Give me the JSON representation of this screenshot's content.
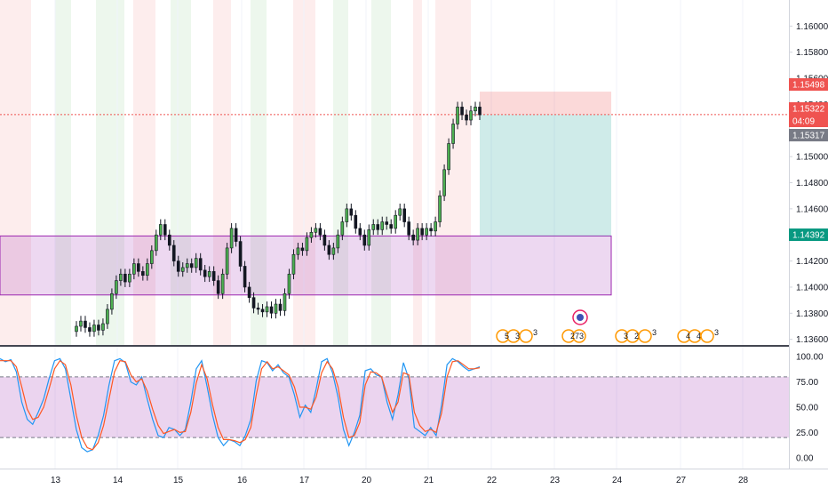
{
  "chart_data": [
    {
      "type": "candlestick",
      "title": "",
      "x_ticks": [
        "13",
        "14",
        "15",
        "16",
        "17",
        "20",
        "21",
        "22",
        "23",
        "24",
        "27",
        "28"
      ],
      "y_ticks": [
        "1.16000",
        "1.15800",
        "1.15600",
        "1.15400",
        "1.15000",
        "1.14800",
        "1.14600",
        "1.14200",
        "1.14000",
        "1.13800",
        "1.13600"
      ],
      "ylim": [
        1.1355,
        1.162
      ],
      "price_tags": [
        {
          "label": "1.15498",
          "value": 1.15498,
          "color": "#ef5350"
        },
        {
          "label": "1.15322",
          "value": 1.15322,
          "color": "#ef5350"
        },
        {
          "label": "04:09",
          "value": 1.1528,
          "color": "#ef5350"
        },
        {
          "label": "1.15317",
          "value": 1.15317,
          "color": "#787b86"
        },
        {
          "label": "1.14392",
          "value": 1.14392,
          "color": "#089981"
        }
      ],
      "current_price": 1.15322,
      "zone": {
        "top": 1.14392,
        "bottom": 1.1394,
        "color": "#9c27b0"
      },
      "position": {
        "entry": 1.15322,
        "stop": 1.15498,
        "target": 1.14392,
        "side": "short"
      },
      "background_band_colors": [
        "#ef5350",
        "#4caf50"
      ],
      "series": [
        {
          "values": [
            1.137,
            1.1374,
            1.1369,
            1.1366,
            1.1371,
            1.1367,
            1.1372,
            1.1383,
            1.1395,
            1.1405,
            1.141,
            1.1404,
            1.141,
            1.1418,
            1.1412,
            1.1409,
            1.1418,
            1.1428,
            1.144,
            1.1448,
            1.144,
            1.1432,
            1.142,
            1.1412,
            1.1415,
            1.1418,
            1.1415,
            1.1422,
            1.1413,
            1.1408,
            1.1412,
            1.1405,
            1.1395,
            1.141,
            1.143,
            1.1445,
            1.1435,
            1.1416,
            1.14,
            1.1392,
            1.1384,
            1.1383,
            1.1381,
            1.1385,
            1.138,
            1.1387,
            1.1382,
            1.1395,
            1.141,
            1.1425,
            1.143,
            1.1428,
            1.1438,
            1.1442,
            1.1445,
            1.144,
            1.1432,
            1.1425,
            1.143,
            1.144,
            1.145,
            1.146,
            1.1455,
            1.1445,
            1.144,
            1.1432,
            1.1444,
            1.1448,
            1.1444,
            1.145,
            1.1448,
            1.1445,
            1.1455,
            1.146,
            1.145,
            1.144,
            1.1436,
            1.1445,
            1.144,
            1.1445,
            1.1443,
            1.145,
            1.147,
            1.149,
            1.151,
            1.1525,
            1.1538,
            1.1532,
            1.1528,
            1.1535,
            1.1538,
            1.1532
          ]
        }
      ]
    },
    {
      "type": "line",
      "title": "",
      "y_ticks": [
        "100.00",
        "75.00",
        "50.00",
        "25.00",
        "0.00"
      ],
      "ylim": [
        -8,
        108
      ],
      "band": {
        "upper": 80,
        "lower": 20,
        "color": "#9c27b0"
      },
      "series": [
        {
          "color": "#2196f3",
          "values": [
            98,
            95,
            97,
            85,
            55,
            38,
            33,
            45,
            58,
            78,
            96,
            98,
            88,
            58,
            28,
            10,
            6,
            8,
            22,
            42,
            72,
            96,
            98,
            94,
            75,
            72,
            80,
            58,
            38,
            22,
            20,
            30,
            28,
            22,
            28,
            55,
            88,
            96,
            70,
            42,
            20,
            12,
            18,
            16,
            12,
            22,
            38,
            76,
            96,
            94,
            86,
            92,
            84,
            80,
            62,
            40,
            52,
            45,
            68,
            95,
            98,
            84,
            60,
            28,
            12,
            25,
            42,
            86,
            88,
            82,
            80,
            55,
            38,
            62,
            94,
            78,
            30,
            26,
            22,
            30,
            22,
            52,
            92,
            98,
            95,
            90,
            86,
            88,
            90
          ]
        },
        {
          "color": "#ff5722",
          "values": [
            96,
            96,
            96,
            90,
            70,
            48,
            38,
            40,
            50,
            68,
            88,
            96,
            92,
            72,
            42,
            20,
            10,
            8,
            15,
            32,
            58,
            85,
            96,
            95,
            82,
            75,
            78,
            66,
            48,
            32,
            24,
            26,
            28,
            25,
            26,
            45,
            74,
            92,
            78,
            52,
            30,
            18,
            18,
            17,
            15,
            18,
            30,
            62,
            88,
            95,
            88,
            90,
            86,
            82,
            70,
            50,
            50,
            48,
            60,
            84,
            95,
            88,
            70,
            40,
            20,
            22,
            35,
            72,
            85,
            84,
            80,
            62,
            45,
            55,
            84,
            82,
            45,
            32,
            26,
            28,
            25,
            44,
            80,
            95,
            96,
            92,
            88,
            88,
            89
          ]
        }
      ]
    }
  ],
  "events": [
    {
      "label": "5",
      "sub": "3",
      "tail": "3"
    },
    {
      "label": "273",
      "sub": "",
      "tail": ""
    },
    {
      "label": "3",
      "sub": "2",
      "tail": "3"
    },
    {
      "label": "4",
      "sub": "4",
      "tail": "3"
    }
  ]
}
